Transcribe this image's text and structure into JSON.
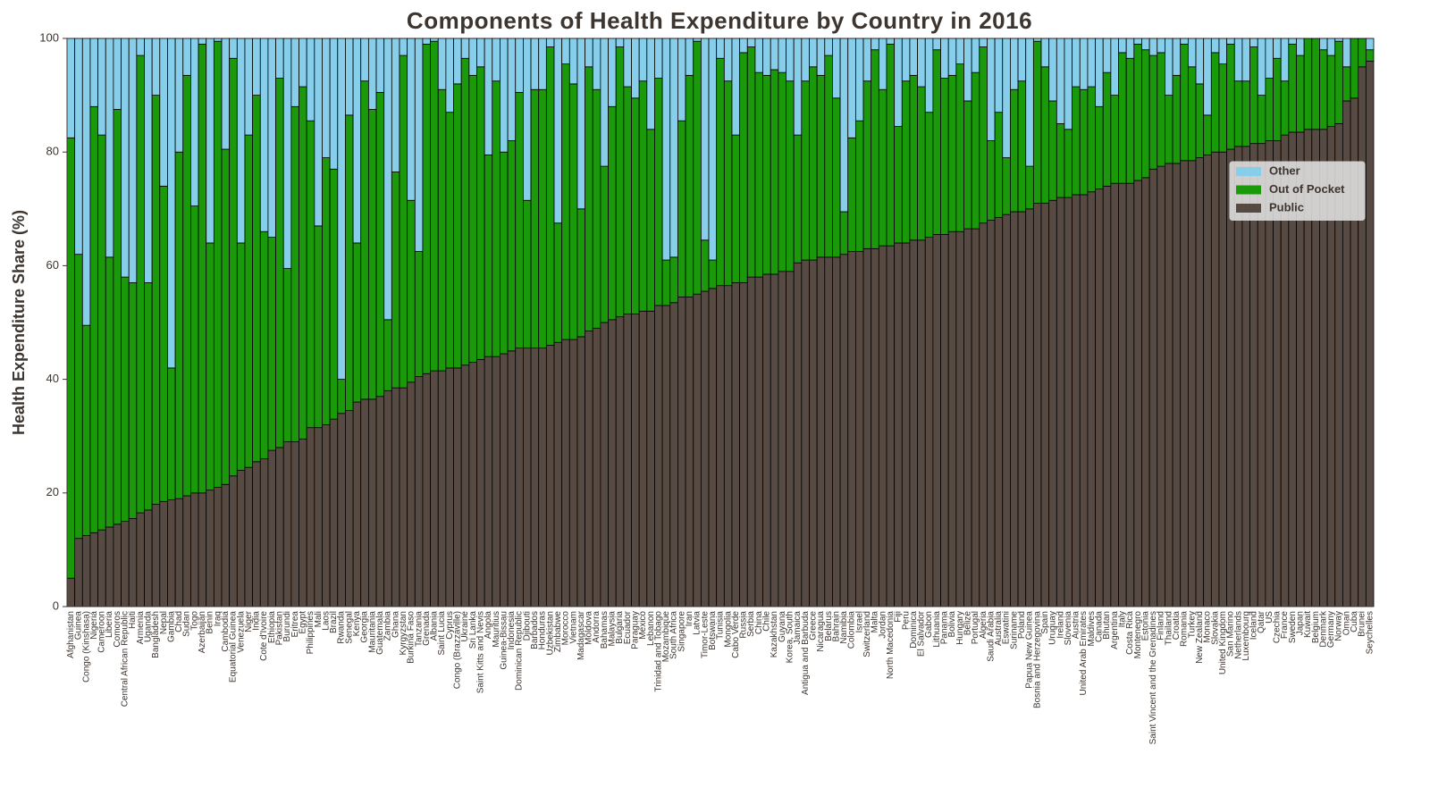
{
  "chart_data": {
    "type": "stacked_bar",
    "title": "Components of Health Expenditure by Country in 2016",
    "y_label": "Health Expenditure Share (%)",
    "ylim": [
      0,
      100
    ],
    "yticks": [
      0,
      20,
      40,
      60,
      80,
      100
    ],
    "legend": "upper right",
    "categories": [
      "Afghanistan",
      "Guinea",
      "Congo (Kinshasa)",
      "Nigeria",
      "Cameroon",
      "Liberia",
      "Comoros",
      "Central African Republic",
      "Haiti",
      "Armenia",
      "Uganda",
      "Bangladesh",
      "Nepal",
      "Gambia",
      "Chad",
      "Sudan",
      "Togo",
      "Azerbaijan",
      "Benin",
      "Iraq",
      "Cambodia",
      "Equatorial Guinea",
      "Venezuela",
      "Niger",
      "India",
      "Cote d'Ivoire",
      "Ethiopia",
      "Pakistan",
      "Burundi",
      "Eritrea",
      "Egypt",
      "Philippines",
      "Mali",
      "Laos",
      "Brazil",
      "Rwanda",
      "Senegal",
      "Kenya",
      "Georgia",
      "Mauritania",
      "Guatemala",
      "Zambia",
      "Ghana",
      "Kyrgyzstan",
      "Burkina Faso",
      "Tanzania",
      "Grenada",
      "Albania",
      "Saint Lucia",
      "Cyprus",
      "Congo (Brazzaville)",
      "Ukraine",
      "Sri Lanka",
      "Saint Kitts and Nevis",
      "Angola",
      "Mauritius",
      "Guinea-Bissau",
      "Indonesia",
      "Dominican Republic",
      "Djibouti",
      "Barbados",
      "Honduras",
      "Uzbekistan",
      "Zimbabwe",
      "Morocco",
      "Vietnam",
      "Madagascar",
      "Moldova",
      "Andorra",
      "Bahamas",
      "Malaysia",
      "Bulgaria",
      "Ecuador",
      "Paraguay",
      "Mexico",
      "Lebanon",
      "Trinidad and Tobago",
      "Mozambique",
      "South Africa",
      "Singapore",
      "Iran",
      "Latvia",
      "Timor-Leste",
      "Botswana",
      "Tunisia",
      "Mongolia",
      "Cabo Verde",
      "Russia",
      "Serbia",
      "China",
      "Chile",
      "Kazakhstan",
      "Guyana",
      "Korea, South",
      "Jamaica",
      "Antigua and Barbuda",
      "Greece",
      "Nicaragua",
      "Belarus",
      "Bahrain",
      "Namibia",
      "Colombia",
      "Israel",
      "Switzerland",
      "Malta",
      "Jordan",
      "North Macedonia",
      "Fiji",
      "Peru",
      "Dominica",
      "El Salvador",
      "Gabon",
      "Lithuania",
      "Panama",
      "Bolivia",
      "Hungary",
      "Belize",
      "Portugal",
      "Algeria",
      "Saudi Arabia",
      "Australia",
      "Eswatini",
      "Suriname",
      "Poland",
      "Papua New Guinea",
      "Bosnia and Herzegovina",
      "Spain",
      "Uruguay",
      "Ireland",
      "Slovenia",
      "Austria",
      "United Arab Emirates",
      "Maldives",
      "Canada",
      "Bhutan",
      "Argentina",
      "Italy",
      "Costa Rica",
      "Montenegro",
      "Estonia",
      "Saint Vincent and the Grenadines",
      "Finland",
      "Thailand",
      "Croatia",
      "Romania",
      "Turkey",
      "New Zealand",
      "Monaco",
      "Slovakia",
      "United Kingdom",
      "San Marino",
      "Netherlands",
      "Luxembourg",
      "Iceland",
      "Qatar",
      "US",
      "Czechia",
      "France",
      "Sweden",
      "Japan",
      "Kuwait",
      "Belgium",
      "Denmark",
      "Germany",
      "Norway",
      "Oman",
      "Cuba",
      "Brunei",
      "Seychelles"
    ],
    "series": [
      {
        "name": "Public",
        "color": "#574a42",
        "values": [
          5,
          12,
          12.5,
          13,
          13.5,
          14,
          14.5,
          15,
          15.5,
          16.5,
          17,
          18,
          18.5,
          18.8,
          19,
          19.5,
          20,
          20,
          20.5,
          21,
          21.5,
          23,
          24,
          24.5,
          25.5,
          26,
          27.5,
          28,
          29,
          29,
          29.5,
          31.5,
          31.5,
          32,
          33,
          34,
          34.5,
          36,
          36.5,
          36.5,
          37,
          38,
          38.5,
          38.5,
          39.5,
          40.5,
          41,
          41.5,
          41.5,
          42,
          42,
          42.5,
          43,
          43.5,
          44,
          44,
          44.5,
          45,
          45.5,
          45.5,
          45.5,
          45.5,
          46,
          46.5,
          47,
          47,
          47.5,
          48.5,
          49,
          50,
          50.5,
          51,
          51.5,
          51.5,
          52,
          52,
          53,
          53,
          53.5,
          54.5,
          54.5,
          55,
          55.5,
          56,
          56.5,
          56.5,
          57,
          57,
          58,
          58,
          58.5,
          58.5,
          59,
          59,
          60.5,
          61,
          61,
          61.5,
          61.5,
          61.5,
          62,
          62.5,
          62.5,
          63,
          63,
          63.5,
          63.5,
          64,
          64,
          64.5,
          64.5,
          65,
          65.5,
          65.5,
          66,
          66,
          66.5,
          66.5,
          67.5,
          68,
          68.5,
          69,
          69.5,
          69.5,
          70,
          71,
          71,
          71.5,
          72,
          72,
          72.5,
          72.5,
          73,
          73.5,
          74,
          74.5,
          74.5,
          74.5,
          75,
          75.5,
          77,
          77.5,
          78,
          78,
          78.5,
          78.5,
          79,
          79.5,
          80,
          80,
          80.5,
          81,
          81,
          81.5,
          81.5,
          82,
          82,
          83,
          83.5,
          83.5,
          84,
          84,
          84,
          84.5,
          85,
          89,
          89.5,
          95,
          96
        ]
      },
      {
        "name": "Out of Pocket",
        "color": "#1a9a0a",
        "values": [
          77.5,
          50,
          37,
          75,
          69.5,
          47.5,
          73,
          43,
          41.5,
          80.5,
          40,
          72,
          55.5,
          23.2,
          61,
          74,
          50.5,
          79,
          43.5,
          78.5,
          59,
          73.5,
          40,
          58.5,
          64.5,
          40,
          37.5,
          65,
          30.5,
          59,
          62,
          54,
          35.5,
          47,
          44,
          6,
          52,
          28,
          56,
          51,
          53.5,
          12.5,
          38,
          58.5,
          32,
          22,
          58,
          58,
          49.5,
          45,
          50,
          54,
          50.5,
          51.5,
          35.5,
          48.5,
          35.5,
          37,
          45,
          26,
          45.5,
          45.5,
          52.5,
          21,
          48.5,
          45,
          22.5,
          46.5,
          42,
          27.5,
          37.5,
          47.5,
          40,
          38,
          40.5,
          32,
          40,
          8,
          8,
          31,
          39,
          44.5,
          9,
          5,
          40,
          36,
          26,
          40.5,
          40.5,
          36,
          35,
          36,
          35,
          33.5,
          22.5,
          31.5,
          34,
          32,
          35.5,
          28,
          7.5,
          20,
          23,
          29.5,
          35,
          27.5,
          35.5,
          20.5,
          28.5,
          29,
          27,
          22,
          32.5,
          27.5,
          27.5,
          29.5,
          22.5,
          27.5,
          31,
          14,
          18.5,
          10,
          21.5,
          23,
          7.5,
          28.5,
          24,
          17.5,
          13,
          12,
          19,
          18.5,
          18.5,
          14.5,
          20,
          15.5,
          23,
          22,
          24,
          22.5,
          20,
          20,
          12,
          15.5,
          20.5,
          16.5,
          13,
          7,
          17.5,
          15.5,
          18.5,
          11.5,
          11.5,
          17,
          8.5,
          11,
          14.5,
          9.5,
          15.5,
          13.5,
          16,
          16,
          14,
          12.5,
          14.5,
          6,
          10.5,
          5,
          2
        ]
      },
      {
        "name": "Other",
        "color": "#87ceeb",
        "values": [
          17.5,
          38,
          50.5,
          12,
          17,
          38.5,
          12.5,
          42,
          43,
          3,
          43,
          10,
          26,
          58,
          20,
          6.5,
          29.5,
          1,
          36,
          0.5,
          19.5,
          3.5,
          36,
          17,
          10,
          34,
          35,
          7,
          40.5,
          12,
          8.5,
          14.5,
          33,
          21,
          23,
          60,
          13.5,
          36,
          7.5,
          12.5,
          9.5,
          49.5,
          23.5,
          3,
          28.5,
          37.5,
          1,
          0.5,
          9,
          13,
          8,
          3.5,
          6.5,
          5,
          20.5,
          7.5,
          20,
          18,
          9.5,
          28.5,
          9,
          9,
          1.5,
          32.5,
          4.5,
          8,
          30,
          5,
          9,
          22.5,
          12,
          1.5,
          8.5,
          10.5,
          7.5,
          16,
          7,
          39,
          38.5,
          14.5,
          6.5,
          0.5,
          35.5,
          39,
          3.5,
          7.5,
          17,
          2.5,
          1.5,
          6,
          6.5,
          5.5,
          6,
          7.5,
          17,
          7.5,
          5,
          6.5,
          3,
          10.5,
          30.5,
          17.5,
          14.5,
          7.5,
          2,
          9,
          1,
          15.5,
          7.5,
          6.5,
          8.5,
          13,
          2,
          7,
          6.5,
          4.5,
          11,
          6,
          1.5,
          18,
          13,
          21,
          9,
          7.5,
          22.5,
          0.5,
          5,
          11,
          15,
          16,
          8.5,
          9,
          8.5,
          12,
          6,
          10,
          2.5,
          3.5,
          1,
          2,
          3,
          2.5,
          10,
          6.5,
          1,
          5,
          8,
          13.5,
          2.5,
          4.5,
          1,
          7.5,
          7.5,
          1.5,
          10,
          7,
          3.5,
          7.5,
          1,
          3,
          0,
          0,
          2,
          3,
          0.5,
          5,
          0,
          0,
          2
        ]
      }
    ]
  }
}
